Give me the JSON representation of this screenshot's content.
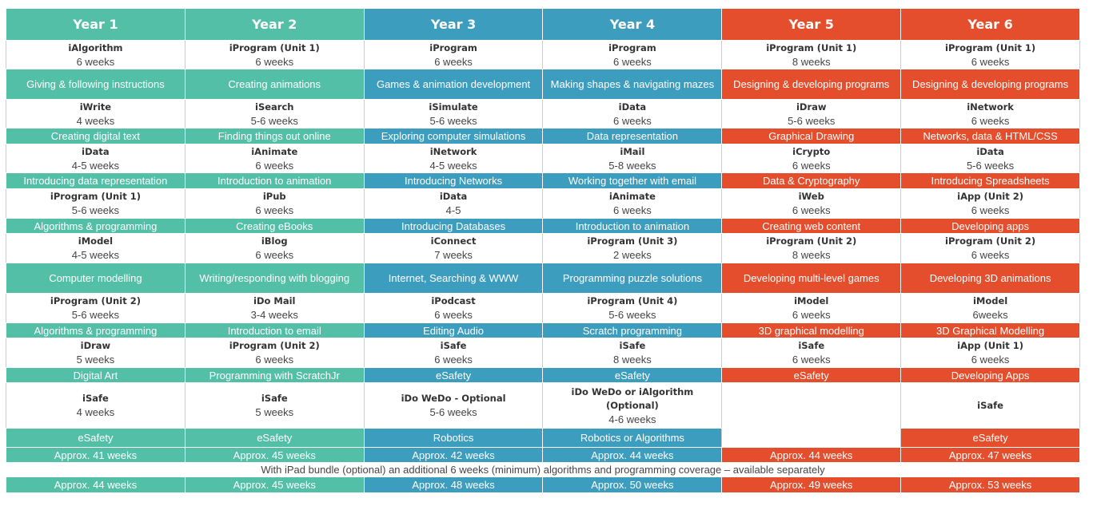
{
  "years": [
    {
      "title": "Year 1",
      "units": [
        {
          "name": "iAlgorithm",
          "weeks": "6 weeks",
          "topic": "Giving & following instructions"
        },
        {
          "name": "iWrite",
          "weeks": "4 weeks",
          "topic": "Creating digital text"
        },
        {
          "name": "iData",
          "weeks": "4-5 weeks",
          "topic": "Introducing data representation"
        },
        {
          "name": "iProgram (Unit 1)",
          "weeks": "5-6 weeks",
          "topic": "Algorithms & programming"
        },
        {
          "name": "iModel",
          "weeks": "4-5 weeks",
          "topic": "Computer modelling"
        },
        {
          "name": "iProgram (Unit 2)",
          "weeks": "5-6 weeks",
          "topic": "Algorithms & programming"
        },
        {
          "name": "iDraw",
          "weeks": "5 weeks",
          "topic": "Digital Art"
        },
        {
          "name": "iSafe",
          "weeks": "4 weeks",
          "topic": "eSafety"
        }
      ],
      "total": "Approx. 41 weeks",
      "total_ipad": "Approx. 44 weeks"
    },
    {
      "title": "Year 2",
      "units": [
        {
          "name": "iProgram (Unit 1)",
          "weeks": "6 weeks",
          "topic": "Creating animations"
        },
        {
          "name": "iSearch",
          "weeks": "5-6 weeks",
          "topic": "Finding things out online"
        },
        {
          "name": "iAnimate",
          "weeks": "6 weeks",
          "topic": "Introduction to animation"
        },
        {
          "name": "iPub",
          "weeks": "6 weeks",
          "topic": "Creating eBooks"
        },
        {
          "name": "iBlog",
          "weeks": "6 weeks",
          "topic": "Writing/responding with blogging"
        },
        {
          "name": "iDo Mail",
          "weeks": "3-4 weeks",
          "topic": "Introduction to email"
        },
        {
          "name": "iProgram (Unit 2)",
          "weeks": "6 weeks",
          "topic": "Programming with ScratchJr"
        },
        {
          "name": "iSafe",
          "weeks": "5 weeks",
          "topic": "eSafety"
        }
      ],
      "total": "Approx. 45 weeks",
      "total_ipad": "Approx. 45 weeks"
    },
    {
      "title": "Year 3",
      "units": [
        {
          "name": "iProgram",
          "weeks": "6 weeks",
          "topic": "Games & animation development"
        },
        {
          "name": "iSimulate",
          "weeks": "5-6 weeks",
          "topic": "Exploring computer simulations"
        },
        {
          "name": "iNetwork",
          "weeks": "4-5 weeks",
          "topic": "Introducing Networks"
        },
        {
          "name": "iData",
          "weeks": "4-5",
          "topic": "Introducing Databases"
        },
        {
          "name": "iConnect",
          "weeks": "7 weeks",
          "topic": "Internet, Searching & WWW"
        },
        {
          "name": "iPodcast",
          "weeks": "6 weeks",
          "topic": "Editing Audio"
        },
        {
          "name": "iSafe",
          "weeks": "6 weeks",
          "topic": "eSafety"
        },
        {
          "name": "iDo WeDo - Optional",
          "weeks": "5-6 weeks",
          "topic": "Robotics"
        }
      ],
      "total": "Approx. 42 weeks",
      "total_ipad": "Approx. 48 weeks"
    },
    {
      "title": "Year 4",
      "units": [
        {
          "name": "iProgram",
          "weeks": "6 weeks",
          "topic": "Making shapes & navigating mazes"
        },
        {
          "name": "iData",
          "weeks": "6 weeks",
          "topic": "Data representation"
        },
        {
          "name": "iMail",
          "weeks": "5-8 weeks",
          "topic": "Working together with email"
        },
        {
          "name": "iAnimate",
          "weeks": "6 weeks",
          "topic": "Introduction to animation"
        },
        {
          "name": "iProgram (Unit 3)",
          "weeks": "2 weeks",
          "topic": "Programming puzzle solutions"
        },
        {
          "name": "iProgram (Unit 4)",
          "weeks": "5-6 weeks",
          "topic": "Scratch programming"
        },
        {
          "name": "iSafe",
          "weeks": "8 weeks",
          "topic": "eSafety"
        },
        {
          "name": "iDo WeDo or iAlgorithm (Optional)",
          "weeks": "4-6 weeks",
          "topic": "Robotics or Algorithms"
        }
      ],
      "total": "Approx. 44 weeks",
      "total_ipad": "Approx.  50 weeks"
    },
    {
      "title": "Year 5",
      "units": [
        {
          "name": "iProgram (Unit 1)",
          "weeks": "8 weeks",
          "topic": "Designing & developing programs"
        },
        {
          "name": "iDraw",
          "weeks": "5-6 weeks",
          "topic": "Graphical Drawing"
        },
        {
          "name": "iCrypto",
          "weeks": "6 weeks",
          "topic": "Data & Cryptography"
        },
        {
          "name": "iWeb",
          "weeks": "6 weeks",
          "topic": "Creating web content"
        },
        {
          "name": "iProgram (Unit 2)",
          "weeks": "8 weeks",
          "topic": "Developing multi-level games"
        },
        {
          "name": "iModel",
          "weeks": "6 weeks",
          "topic": "3D graphical modelling"
        },
        {
          "name": "iSafe",
          "weeks": "6 weeks",
          "topic": "eSafety"
        }
      ],
      "total": "Approx. 44 weeks",
      "total_ipad": "Approx. 49 weeks"
    },
    {
      "title": "Year 6",
      "units": [
        {
          "name": "iProgram (Unit 1)",
          "weeks": "6 weeks",
          "topic": "Designing & developing programs"
        },
        {
          "name": "iNetwork",
          "weeks": "6 weeks",
          "topic": "Networks, data & HTML/CSS"
        },
        {
          "name": "iData",
          "weeks": "5-6 weeks",
          "topic": "Introducing Spreadsheets"
        },
        {
          "name": "iApp (Unit 2)",
          "weeks": "6 weeks",
          "topic": "Developing apps"
        },
        {
          "name": "iProgram (Unit 2)",
          "weeks": "6 weeks",
          "topic": "Developing 3D animations"
        },
        {
          "name": "iModel",
          "weeks": "6weeks",
          "topic": "3D Graphical Modelling"
        },
        {
          "name": "iApp (Unit 1)",
          "weeks": "6 weeks",
          "topic": "Developing Apps"
        },
        {
          "name": "iSafe",
          "topic": "eSafety"
        }
      ],
      "total": "Approx. 47 weeks",
      "total_ipad": "Approx. 53 weeks"
    }
  ],
  "note": "With iPad bundle (optional) an additional 6 weeks (minimum) algorithms and programming coverage – available separately"
}
